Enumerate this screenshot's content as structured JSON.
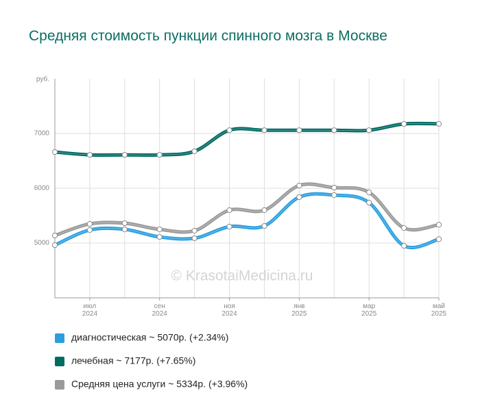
{
  "chart_data": {
    "type": "line",
    "title": "Средняя стоимость пункции спинного мозга в Москве",
    "y_unit": "руб.",
    "watermark": "© KrasotaiMedicina.ru",
    "categories": [
      null,
      "июл 2024",
      null,
      "сен 2024",
      null,
      "ноя 2024",
      null,
      "янв 2025",
      null,
      "мар 2025",
      null,
      "май 2025"
    ],
    "ylim": [
      4000,
      8000
    ],
    "yticks": [
      5000,
      6000,
      7000
    ],
    "grid": true,
    "series": [
      {
        "name": "Средняя цена услуги ~ 5334р. (+3.96%)",
        "color": "#9a9a9a",
        "values": [
          5138,
          5350,
          5362,
          5250,
          5225,
          5600,
          5600,
          6050,
          6012,
          5925,
          5275,
          5334
        ]
      },
      {
        "name": "диагностическая ~ 5070р. (+2.34%)",
        "color": "#2a9fe0",
        "values": [
          4962,
          5238,
          5250,
          5112,
          5088,
          5300,
          5312,
          5838,
          5875,
          5738,
          4950,
          5070
        ]
      },
      {
        "name": "лечебная ~ 7177р. (+7.65%)",
        "color": "#006b63",
        "values": [
          6662,
          6610,
          6610,
          6610,
          6675,
          7060,
          7060,
          7060,
          7060,
          7060,
          7175,
          7177
        ]
      }
    ],
    "legend_order": [
      1,
      2,
      0
    ]
  }
}
